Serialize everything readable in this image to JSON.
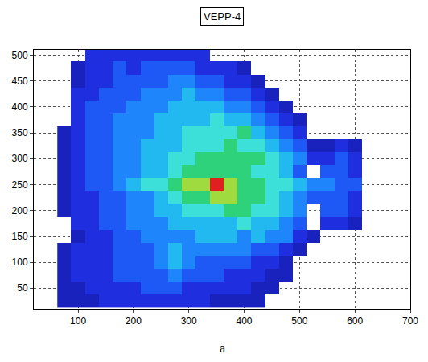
{
  "chart_data": {
    "type": "heatmap",
    "title": "VEPP-4",
    "annotations": [
      "a"
    ],
    "x": [
      75,
      100,
      125,
      150,
      175,
      200,
      225,
      250,
      275,
      300,
      325,
      350,
      375,
      400,
      425,
      450,
      475,
      500,
      525,
      550,
      575,
      600,
      625
    ],
    "y": [
      25,
      50,
      75,
      100,
      125,
      150,
      175,
      200,
      225,
      250,
      275,
      300,
      325,
      350,
      375,
      400,
      425,
      450,
      475,
      500
    ],
    "z": [
      [
        1,
        1,
        1,
        2,
        2,
        2,
        2,
        2,
        2,
        2,
        2,
        1,
        1,
        1,
        1,
        null,
        null,
        null,
        null,
        null,
        null,
        null,
        null
      ],
      [
        1,
        1,
        2,
        2,
        2,
        2,
        3,
        3,
        3,
        2,
        2,
        2,
        2,
        2,
        1,
        1,
        null,
        null,
        null,
        null,
        null,
        null,
        null
      ],
      [
        1,
        2,
        2,
        2,
        3,
        3,
        3,
        3,
        4,
        3,
        3,
        3,
        2,
        2,
        2,
        1,
        1,
        null,
        null,
        null,
        null,
        null,
        null
      ],
      [
        1,
        2,
        2,
        2,
        3,
        3,
        3,
        4,
        5,
        4,
        3,
        3,
        3,
        3,
        2,
        2,
        1,
        null,
        null,
        null,
        null,
        null,
        null
      ],
      [
        1,
        2,
        2,
        2,
        3,
        3,
        3,
        4,
        5,
        4,
        4,
        4,
        4,
        4,
        3,
        3,
        2,
        1,
        null,
        null,
        null,
        null,
        null
      ],
      [
        null,
        1,
        2,
        2,
        3,
        3,
        4,
        4,
        4,
        4,
        5,
        5,
        5,
        4,
        5,
        4,
        4,
        2,
        1,
        null,
        null,
        null,
        null
      ],
      [
        null,
        2,
        2,
        3,
        3,
        4,
        4,
        4,
        5,
        5,
        5,
        5,
        5,
        6,
        5,
        5,
        4,
        3,
        null,
        2,
        2,
        1,
        null
      ],
      [
        1,
        2,
        2,
        3,
        3,
        4,
        4,
        5,
        5,
        6,
        6,
        6,
        7,
        7,
        6,
        6,
        5,
        4,
        null,
        3,
        3,
        2,
        null
      ],
      [
        1,
        2,
        2,
        3,
        3,
        4,
        4,
        5,
        6,
        7,
        7,
        8,
        8,
        7,
        7,
        6,
        5,
        4,
        3,
        3,
        3,
        2,
        null
      ],
      [
        1,
        2,
        3,
        3,
        4,
        5,
        6,
        6,
        7,
        8,
        8,
        10,
        8,
        7,
        7,
        6,
        6,
        5,
        4,
        4,
        3,
        3,
        null
      ],
      [
        1,
        2,
        3,
        3,
        4,
        4,
        5,
        5,
        6,
        7,
        7,
        7,
        7,
        7,
        6,
        6,
        5,
        3,
        null,
        3,
        3,
        2,
        null
      ],
      [
        1,
        2,
        3,
        3,
        4,
        4,
        5,
        5,
        6,
        6,
        7,
        7,
        7,
        7,
        7,
        6,
        5,
        4,
        2,
        2,
        3,
        2,
        null
      ],
      [
        1,
        2,
        3,
        3,
        4,
        4,
        5,
        5,
        5,
        6,
        6,
        6,
        7,
        6,
        6,
        5,
        4,
        3,
        1,
        1,
        2,
        1,
        null
      ],
      [
        1,
        2,
        3,
        3,
        4,
        4,
        4,
        5,
        5,
        6,
        6,
        6,
        6,
        7,
        5,
        4,
        3,
        2,
        null,
        null,
        null,
        null,
        null
      ],
      [
        null,
        2,
        3,
        3,
        4,
        4,
        4,
        5,
        5,
        5,
        5,
        6,
        5,
        5,
        4,
        3,
        2,
        1,
        null,
        null,
        null,
        null,
        null
      ],
      [
        null,
        2,
        3,
        3,
        3,
        4,
        4,
        4,
        5,
        5,
        5,
        5,
        4,
        4,
        3,
        2,
        1,
        null,
        null,
        null,
        null,
        null,
        null
      ],
      [
        null,
        2,
        2,
        3,
        3,
        3,
        4,
        4,
        4,
        5,
        4,
        4,
        3,
        3,
        2,
        1,
        null,
        null,
        null,
        null,
        null,
        null,
        null
      ],
      [
        null,
        1,
        2,
        2,
        3,
        3,
        3,
        3,
        4,
        4,
        3,
        3,
        2,
        2,
        1,
        null,
        null,
        null,
        null,
        null,
        null,
        null,
        null
      ],
      [
        null,
        1,
        2,
        2,
        3,
        2,
        3,
        3,
        3,
        3,
        2,
        2,
        2,
        1,
        null,
        null,
        null,
        null,
        null,
        null,
        null,
        null,
        null
      ],
      [
        null,
        null,
        2,
        2,
        2,
        2,
        2,
        2,
        2,
        2,
        2,
        null,
        null,
        null,
        null,
        null,
        null,
        null,
        null,
        null,
        null,
        null,
        null
      ]
    ],
    "zlim": [
      0,
      10
    ],
    "xlim": [
      20,
      700
    ],
    "xticks": [
      100,
      200,
      300,
      400,
      500,
      600,
      700
    ],
    "ylim": [
      10,
      510
    ],
    "yticks": [
      50,
      100,
      150,
      200,
      250,
      300,
      350,
      400,
      450,
      500
    ],
    "grid": true
  }
}
